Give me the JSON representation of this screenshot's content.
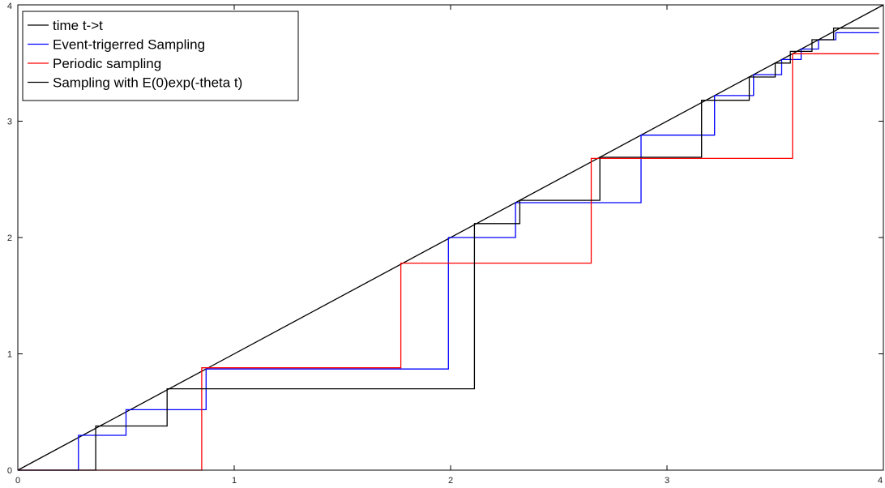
{
  "chart_data": {
    "type": "line",
    "title": "",
    "xlabel": "",
    "ylabel": "",
    "xlim": [
      0,
      4
    ],
    "ylim": [
      0,
      4
    ],
    "xticks": [
      "0",
      "1",
      "2",
      "3",
      "4"
    ],
    "yticks": [
      "0",
      "1",
      "2",
      "3",
      "4"
    ],
    "grid": false,
    "legend_position": "top-left",
    "series": [
      {
        "name": "time t->t",
        "color": "#000000",
        "step": false,
        "x": [
          0,
          4
        ],
        "y": [
          0,
          4
        ]
      },
      {
        "name": "Event-trigerred Sampling",
        "color": "#0000ff",
        "step": true,
        "x": [
          0.0,
          0.28,
          0.28,
          0.5,
          0.5,
          0.87,
          0.87,
          1.99,
          1.99,
          2.3,
          2.3,
          2.88,
          2.88,
          3.22,
          3.22,
          3.4,
          3.4,
          3.53,
          3.53,
          3.62,
          3.62,
          3.7,
          3.7,
          3.78,
          3.78,
          3.8,
          3.8,
          3.98
        ],
        "y": [
          0.0,
          0.0,
          0.3,
          0.3,
          0.52,
          0.52,
          0.87,
          0.87,
          2.0,
          2.0,
          2.3,
          2.3,
          2.88,
          2.88,
          3.22,
          3.22,
          3.4,
          3.4,
          3.53,
          3.53,
          3.62,
          3.62,
          3.7,
          3.7,
          3.76,
          3.76,
          3.76,
          3.76
        ]
      },
      {
        "name": "Periodic sampling",
        "color": "#ff0000",
        "step": true,
        "x": [
          0.0,
          0.85,
          0.85,
          1.77,
          1.77,
          2.65,
          2.65,
          3.58,
          3.58,
          3.98
        ],
        "y": [
          0.0,
          0.0,
          0.88,
          0.88,
          1.78,
          1.78,
          2.68,
          2.68,
          3.58,
          3.58
        ]
      },
      {
        "name": "Sampling with E(0)exp(-theta t)",
        "color": "#000000",
        "step": true,
        "x": [
          0.0,
          0.36,
          0.36,
          0.69,
          0.69,
          2.11,
          2.11,
          2.32,
          2.32,
          2.69,
          2.69,
          3.16,
          3.16,
          3.38,
          3.38,
          3.5,
          3.5,
          3.57,
          3.57,
          3.67,
          3.67,
          3.77,
          3.77,
          3.98
        ],
        "y": [
          0.0,
          0.0,
          0.38,
          0.38,
          0.7,
          0.7,
          2.12,
          2.12,
          2.32,
          2.32,
          2.69,
          2.69,
          3.18,
          3.18,
          3.38,
          3.38,
          3.5,
          3.5,
          3.6,
          3.6,
          3.7,
          3.7,
          3.8,
          3.8
        ]
      }
    ]
  }
}
